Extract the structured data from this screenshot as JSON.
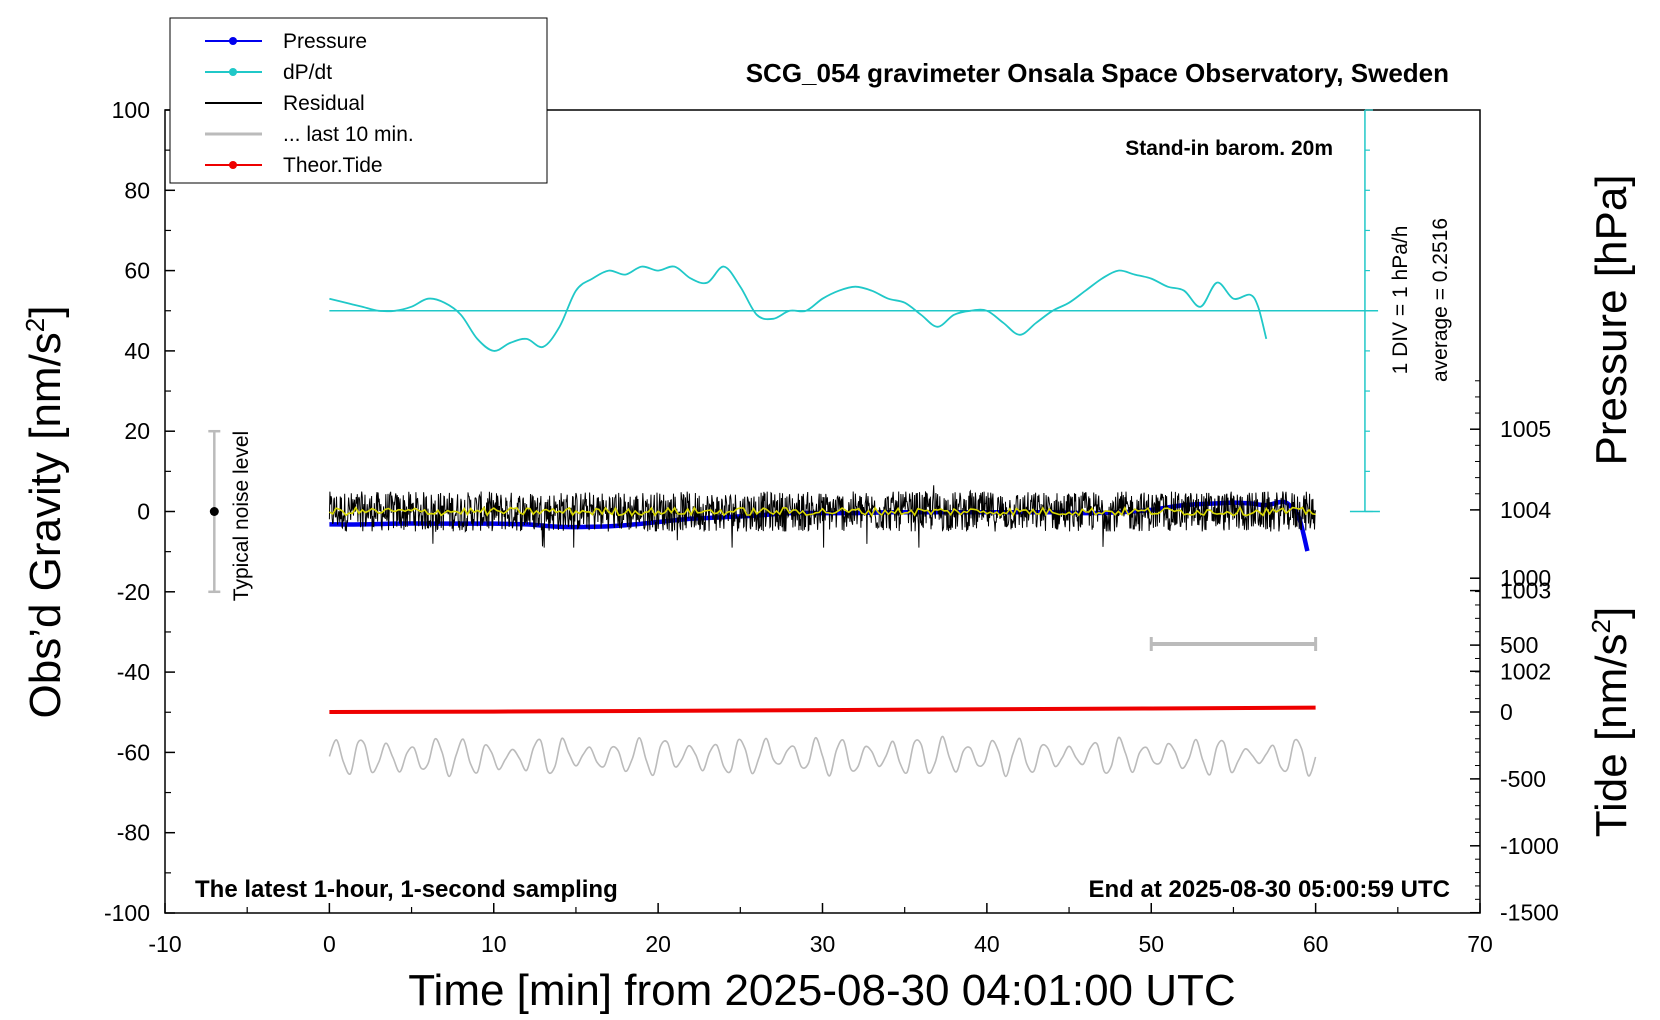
{
  "chart_data": {
    "type": "line",
    "title": "SCG_054 gravimeter Onsala Space Observatory, Sweden",
    "xlabel": "Time [min] from 2025-08-30 04:01:00 UTC",
    "ylabel_left": "Obs’d Gravity [nm/s",
    "ylabel_left_sup": "2",
    "ylabel_left_end": "]",
    "ylabel_right_top": "Pressure [hPa]",
    "ylabel_right_bottom": "Tide [nm/s",
    "ylabel_right_bottom_sup": "2",
    "ylabel_right_bottom_end": "]",
    "xlim": [
      -10,
      70
    ],
    "ylim_left": [
      -100,
      100
    ],
    "x_ticks": [
      "-10",
      "0",
      "10",
      "20",
      "30",
      "40",
      "50",
      "60",
      "70"
    ],
    "y_ticks_left": [
      "100",
      "80",
      "60",
      "40",
      "20",
      "0",
      "-20",
      "-40",
      "-60",
      "-80",
      "-100"
    ],
    "pressure_ticks": [
      "1005",
      "1004",
      "1003",
      "1002"
    ],
    "pressure_tick_values": [
      1005,
      1004,
      1003,
      1002
    ],
    "tide_ticks": [
      "1000",
      "500",
      "0",
      "-500",
      "-1000",
      "-1500"
    ],
    "tide_tick_values": [
      1000,
      500,
      0,
      -500,
      -1000,
      -1500
    ],
    "annotations": {
      "barometer": "Stand-in barom. 20m",
      "div_note": "1 DIV = 1 hPa/h",
      "average_note": "average = 0.2516",
      "noise_label": "Typical noise level",
      "bottom_left": "The latest 1-hour, 1-second sampling",
      "bottom_right": "End at 2025-08-30 05:00:59 UTC"
    },
    "legend": {
      "placement": "top-left",
      "entries": [
        {
          "label": "Pressure",
          "color": "#0000ee",
          "marker": true
        },
        {
          "label": "dP/dt",
          "color": "#20c8c8",
          "marker": true
        },
        {
          "label": "Residual",
          "color": "#000000",
          "marker": false
        },
        {
          "label": "... last 10 min.",
          "color": "#bbbbbb",
          "marker": false
        },
        {
          "label": "Theor.Tide",
          "color": "#ee0000",
          "marker": true
        }
      ]
    },
    "series": [
      {
        "name": "Pressure",
        "color": "#0000ee",
        "axis": "pressure_hPa",
        "x": [
          0,
          2,
          4,
          6,
          8,
          10,
          12,
          14,
          16,
          18,
          20,
          22,
          24,
          26,
          28,
          30,
          32,
          34,
          36,
          38,
          40,
          42,
          44,
          46,
          48,
          50,
          52,
          54,
          55,
          56,
          57,
          58,
          58.5,
          59,
          59.5
        ],
        "y": [
          1003.82,
          1003.82,
          1003.83,
          1003.83,
          1003.83,
          1003.83,
          1003.82,
          1003.79,
          1003.79,
          1003.81,
          1003.85,
          1003.89,
          1003.91,
          1003.93,
          1003.96,
          1003.96,
          1003.96,
          1003.97,
          1003.97,
          1003.97,
          1003.97,
          1003.97,
          1003.97,
          1003.96,
          1003.97,
          1004.0,
          1004.06,
          1004.08,
          1004.09,
          1004.08,
          1004.06,
          1004.1,
          1004.04,
          1003.9,
          1003.49
        ]
      },
      {
        "name": "dP/dt",
        "color": "#20c8c8",
        "axis": "gravity_scale",
        "x": [
          0,
          1,
          2,
          3,
          4,
          5,
          6,
          7,
          8,
          9,
          10,
          11,
          12,
          13,
          14,
          15,
          16,
          17,
          18,
          19,
          20,
          21,
          22,
          23,
          24,
          25,
          26,
          27,
          28,
          29,
          30,
          31,
          32,
          33,
          34,
          35,
          36,
          37,
          38,
          39,
          40,
          41,
          42,
          43,
          44,
          45,
          46,
          47,
          48,
          49,
          50,
          51,
          52,
          53,
          54,
          55,
          56,
          56.5,
          57
        ],
        "y": [
          53,
          52,
          51,
          50,
          50,
          51,
          53,
          52,
          49,
          43,
          40,
          42,
          43,
          41,
          46,
          55,
          58,
          60,
          59,
          61,
          60,
          61,
          58,
          57,
          61,
          56,
          49,
          48,
          50,
          50,
          53,
          55,
          56,
          55,
          53,
          52,
          49,
          46,
          49,
          50,
          50,
          47,
          44,
          47,
          50,
          52,
          55,
          58,
          60,
          59,
          58,
          56,
          55,
          51,
          57,
          53,
          54,
          51,
          43
        ]
      },
      {
        "name": "Residual",
        "color": "#000000",
        "axis": "gravity",
        "x_range": [
          0,
          60
        ],
        "center": 0,
        "amplitude": 5,
        "peak_range": [
          -9,
          11
        ]
      },
      {
        "name": "Residual smoothed",
        "color": "#d8d800",
        "axis": "gravity",
        "x_range": [
          0,
          60
        ],
        "center": 0,
        "amplitude": 1
      },
      {
        "name": "... last 10 min.",
        "color": "#bbbbbb",
        "axis": "gravity",
        "x_range": [
          0,
          60
        ],
        "center": -61,
        "amplitude": 5
      },
      {
        "name": "Theor.Tide",
        "color": "#ee0000",
        "axis": "tide_nm_s2",
        "x": [
          0,
          10,
          20,
          30,
          40,
          50,
          60
        ],
        "y": [
          0,
          3,
          8,
          14,
          20,
          26,
          33
        ]
      }
    ],
    "dPdt_zero_line": 50,
    "dPdt_scale_bar": {
      "x": 63,
      "y_top": 100,
      "y_bottom": 0
    },
    "noise_bar": {
      "x": -7,
      "center": 0,
      "half": 20
    },
    "scale_bar_10min": {
      "x_start": 50,
      "x_end": 60,
      "y": -33
    }
  }
}
